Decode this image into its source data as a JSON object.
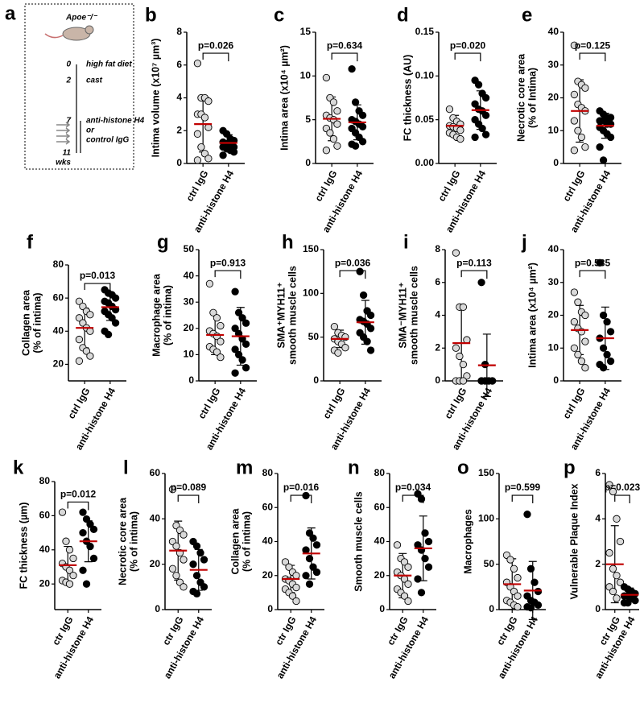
{
  "schematic": {
    "label": "a",
    "mouse": "Apoe⁻/⁻",
    "unit": "wks",
    "timeline": [
      {
        "week": 0,
        "event": [
          "high fat diet"
        ]
      },
      {
        "week": 2,
        "event": [
          "cast"
        ]
      },
      {
        "week": 7,
        "event": [
          "anti-histone H4",
          "or",
          "control IgG"
        ]
      },
      {
        "week": 11,
        "event": []
      }
    ]
  },
  "chart_data": [
    {
      "type": "dot",
      "panel": "b",
      "ylabel": [
        "Intima volume (x10⁷ µm³)"
      ],
      "annotation": "p=0.026",
      "categories": [
        "ctrl IgG",
        "anti-histone H4"
      ],
      "colors": [
        "#d9d9d9",
        "#000000"
      ],
      "mean_color": "#c00000",
      "values": [
        [
          6.1,
          4.0,
          4.0,
          3.8,
          3.0,
          3.0,
          2.8,
          2.2,
          1.8,
          1.0,
          0.6,
          0.3,
          0.2
        ],
        [
          2.0,
          1.8,
          1.5,
          1.4,
          1.3,
          1.2,
          1.2,
          1.0,
          1.0,
          0.9,
          0.8,
          0.7,
          0.5
        ]
      ],
      "mean": [
        2.4,
        1.25
      ],
      "sd": [
        1.7,
        0.5
      ],
      "ylim": [
        0,
        8
      ],
      "yticks": [
        0,
        2,
        4,
        6,
        8
      ]
    },
    {
      "type": "dot",
      "panel": "c",
      "ylabel": [
        "Intima area (x10⁴ µm²)"
      ],
      "annotation": "p=0.634",
      "categories": [
        "ctrl IgG",
        "anti-histone H4"
      ],
      "colors": [
        "#d9d9d9",
        "#000000"
      ],
      "mean_color": "#c00000",
      "values": [
        [
          9.8,
          7.5,
          7.0,
          6.0,
          5.5,
          5.2,
          5.0,
          4.5,
          4.0,
          3.5,
          2.8,
          2.0,
          1.5
        ],
        [
          10.8,
          7.0,
          6.0,
          5.5,
          5.0,
          4.8,
          4.5,
          4.2,
          4.0,
          3.5,
          3.0,
          2.5,
          2.2,
          2.0
        ]
      ],
      "mean": [
        5.1,
        4.7
      ],
      "sd": [
        2.5,
        2.0
      ],
      "ylim": [
        0,
        15
      ],
      "yticks": [
        0,
        5,
        10,
        15
      ]
    },
    {
      "type": "dot",
      "panel": "d",
      "ylabel": [
        "FC thickness  (AU)"
      ],
      "annotation": "p=0.020",
      "categories": [
        "ctrl IgG",
        "anti-histone H4"
      ],
      "colors": [
        "#d9d9d9",
        "#000000"
      ],
      "mean_color": "#c00000",
      "values": [
        [
          0.062,
          0.052,
          0.048,
          0.045,
          0.043,
          0.042,
          0.04,
          0.038,
          0.035,
          0.033,
          0.03,
          0.028
        ],
        [
          0.095,
          0.09,
          0.08,
          0.075,
          0.068,
          0.062,
          0.06,
          0.055,
          0.05,
          0.045,
          0.04,
          0.033,
          0.03
        ]
      ],
      "mean": [
        0.043,
        0.061
      ],
      "sd": [
        0.012,
        0.022
      ],
      "ylim": [
        0,
        0.15
      ],
      "yticks": [
        {
          "value": 0,
          "label": "0.00"
        },
        0.05,
        {
          "value": 0.1,
          "label": "0.10"
        },
        0.15
      ]
    },
    {
      "type": "dot",
      "panel": "e",
      "ylabel": [
        "Necrotic core area",
        "(% of Intima)"
      ],
      "annotation": "p=0.125",
      "categories": [
        "ctrl IgG",
        "anti-histone H4"
      ],
      "colors": [
        "#d9d9d9",
        "#000000"
      ],
      "mean_color": "#c00000",
      "values": [
        [
          36,
          25,
          24,
          23,
          21,
          18,
          17,
          16,
          13,
          10,
          8,
          5,
          4
        ],
        [
          16,
          15,
          14,
          14,
          13,
          13,
          12,
          12,
          11,
          10,
          9,
          8,
          5,
          1
        ]
      ],
      "mean": [
        16,
        11.5
      ],
      "sd": [
        9.5,
        3.8
      ],
      "ylim": [
        0,
        40
      ],
      "yticks": [
        0,
        10,
        20,
        30,
        40
      ]
    },
    {
      "type": "dot",
      "panel": "f",
      "ylabel": [
        "Collagen  area",
        "(% of intima)"
      ],
      "annotation": "p=0.013",
      "categories": [
        "ctrl IgG",
        "anti-histone H4"
      ],
      "colors": [
        "#d9d9d9",
        "#000000"
      ],
      "mean_color": "#c00000",
      "values": [
        [
          58,
          55,
          52,
          50,
          48,
          45,
          42,
          40,
          35,
          30,
          28,
          25,
          22
        ],
        [
          65,
          63,
          62,
          60,
          58,
          57,
          55,
          53,
          52,
          50,
          48,
          45,
          40,
          38
        ]
      ],
      "mean": [
        42,
        54.5
      ],
      "sd": [
        12,
        8
      ],
      "ylim": [
        10,
        80
      ],
      "yticks": [
        20,
        40,
        60,
        80
      ]
    },
    {
      "type": "dot",
      "panel": "g",
      "ylabel": [
        "Macrophage area",
        "(% of intima)"
      ],
      "annotation": "p=0.913",
      "categories": [
        "ctrl IgG",
        "anti-histone H4"
      ],
      "colors": [
        "#d9d9d9",
        "#000000"
      ],
      "mean_color": "#c00000",
      "values": [
        [
          37,
          26,
          24,
          21,
          19,
          18,
          17,
          15,
          13,
          12,
          11,
          9
        ],
        [
          34,
          26,
          24,
          22,
          20,
          18,
          16,
          14,
          12,
          10,
          8,
          5,
          3
        ]
      ],
      "mean": [
        17.5,
        17
      ],
      "sd": [
        7.5,
        11
      ],
      "ylim": [
        0,
        50
      ],
      "yticks": [
        0,
        10,
        20,
        30,
        40,
        50
      ]
    },
    {
      "type": "dot",
      "panel": "h",
      "ylabel": [
        "SMA⁺MYH11⁺",
        "smooth muscle cells"
      ],
      "annotation": "p=0.036",
      "categories": [
        "ctrl IgG",
        "anti-histone H4"
      ],
      "colors": [
        "#d9d9d9",
        "#000000"
      ],
      "mean_color": "#c00000",
      "values": [
        [
          62,
          55,
          52,
          50,
          48,
          45,
          42,
          38,
          35,
          32
        ],
        [
          125,
          98,
          80,
          75,
          70,
          68,
          65,
          60,
          55,
          50,
          45,
          35
        ]
      ],
      "mean": [
        48,
        67
      ],
      "sd": [
        10,
        25
      ],
      "ylim": [
        0,
        150
      ],
      "yticks": [
        0,
        50,
        100,
        150
      ]
    },
    {
      "type": "dot",
      "panel": "i",
      "ylabel": [
        "SMA⁻MYH11⁺",
        "smooth muscle cells"
      ],
      "annotation": "p=0.113",
      "categories": [
        "ctrl IgG",
        "anti-histone H4"
      ],
      "colors": [
        "#d9d9d9",
        "#000000"
      ],
      "mean_color": "#c00000",
      "values": [
        [
          7.8,
          4.5,
          4.5,
          2.5,
          2.0,
          1.5,
          1.0,
          0.3,
          0,
          0,
          0
        ],
        [
          6.0,
          1.0,
          0,
          0,
          0,
          0,
          0,
          0,
          0,
          0
        ]
      ],
      "mean": [
        2.3,
        0.95
      ],
      "sd": [
        2.3,
        1.9
      ],
      "ylim": [
        0,
        8
      ],
      "yticks": [
        0,
        2,
        4,
        6,
        8
      ]
    },
    {
      "type": "dot",
      "panel": "j",
      "ylabel": [
        "Intima area (x10⁴ µm²)"
      ],
      "annotation": "p=0.535",
      "categories": [
        "ctrl IgG",
        "anti-histone H4"
      ],
      "colors": [
        "#d9d9d9",
        "#000000"
      ],
      "mean_color": "#c00000",
      "values": [
        [
          27,
          24,
          21,
          20,
          18,
          16,
          15,
          12,
          10,
          8,
          6,
          4
        ],
        [
          36,
          20,
          18,
          15,
          13,
          10,
          8,
          6,
          5,
          4
        ]
      ],
      "mean": [
        15.5,
        13
      ],
      "sd": [
        7.5,
        9.5
      ],
      "ylim": [
        0,
        40
      ],
      "yticks": [
        0,
        10,
        20,
        30,
        40
      ]
    },
    {
      "type": "dot",
      "panel": "k",
      "ylabel": [
        "FC thickness (µm)"
      ],
      "annotation": "p=0.012",
      "categories": [
        "ctr IgG",
        "anti-histone H4"
      ],
      "colors": [
        "#d9d9d9",
        "#000000"
      ],
      "mean_color": "#c00000",
      "values": [
        [
          62,
          45,
          40,
          35,
          32,
          30,
          28,
          25,
          22,
          21,
          20
        ],
        [
          62,
          58,
          55,
          52,
          50,
          45,
          42,
          35,
          28,
          20
        ]
      ],
      "mean": [
        31,
        45
      ],
      "sd": [
        11,
        12
      ],
      "ylim": [
        5,
        80
      ],
      "yticks": [
        20,
        40,
        60,
        80
      ]
    },
    {
      "type": "dot",
      "panel": "l",
      "ylabel": [
        "Necrotic core area",
        "(% of intima)"
      ],
      "annotation": "p=0.089",
      "categories": [
        "ctr IgG",
        "anti-histone H4"
      ],
      "colors": [
        "#d9d9d9",
        "#000000"
      ],
      "mean_color": "#c00000",
      "values": [
        [
          53,
          37,
          35,
          33,
          30,
          28,
          25,
          22,
          18,
          15,
          12,
          10
        ],
        [
          30,
          28,
          25,
          22,
          20,
          15,
          12,
          10,
          8,
          7
        ]
      ],
      "mean": [
        26,
        17.5
      ],
      "sd": [
        13,
        9
      ],
      "ylim": [
        0,
        60
      ],
      "yticks": [
        0,
        20,
        40,
        60
      ]
    },
    {
      "type": "dot",
      "panel": "m",
      "ylabel": [
        "Collagen area",
        "(% of intima)"
      ],
      "annotation": "p=0.016",
      "categories": [
        "ctr IgG",
        "anti-histone H4"
      ],
      "colors": [
        "#d9d9d9",
        "#000000"
      ],
      "mean_color": "#c00000",
      "values": [
        [
          28,
          25,
          22,
          20,
          18,
          17,
          15,
          13,
          12,
          10,
          8,
          5
        ],
        [
          67,
          45,
          42,
          38,
          35,
          30,
          25,
          22,
          20,
          15
        ]
      ],
      "mean": [
        18,
        33
      ],
      "sd": [
        8,
        15
      ],
      "ylim": [
        0,
        80
      ],
      "yticks": [
        0,
        20,
        40,
        60,
        80
      ]
    },
    {
      "type": "dot",
      "panel": "n",
      "ylabel": [
        "Smooth muscle cells"
      ],
      "annotation": "p=0.034",
      "categories": [
        "ctr IgG",
        "anti-histone H4"
      ],
      "colors": [
        "#d9d9d9",
        "#000000"
      ],
      "mean_color": "#c00000",
      "values": [
        [
          38,
          30,
          28,
          25,
          22,
          20,
          18,
          15,
          12,
          10,
          8,
          5
        ],
        [
          68,
          65,
          45,
          40,
          38,
          35,
          30,
          25,
          18,
          10
        ]
      ],
      "mean": [
        20,
        36
      ],
      "sd": [
        13,
        19
      ],
      "ylim": [
        0,
        80
      ],
      "yticks": [
        0,
        20,
        40,
        60,
        80
      ]
    },
    {
      "type": "dot",
      "panel": "o",
      "ylabel": [
        "Macrophages"
      ],
      "annotation": "p=0.599",
      "categories": [
        "ctr IgG",
        "anti-histone H4"
      ],
      "colors": [
        "#d9d9d9",
        "#000000"
      ],
      "mean_color": "#c00000",
      "values": [
        [
          60,
          55,
          45,
          35,
          30,
          25,
          20,
          15,
          10,
          8,
          5,
          3
        ],
        [
          105,
          45,
          30,
          20,
          15,
          10,
          8,
          5,
          3,
          2
        ]
      ],
      "mean": [
        28,
        21
      ],
      "sd": [
        28,
        32
      ],
      "ylim": [
        0,
        150
      ],
      "yticks": [
        0,
        50,
        100,
        150
      ]
    },
    {
      "type": "dot",
      "panel": "p",
      "ylabel": [
        "Vulnerable Plaque Index"
      ],
      "annotation": "p=0.023",
      "categories": [
        "ctr IgG",
        "anti-histone H4"
      ],
      "colors": [
        "#d9d9d9",
        "#000000"
      ],
      "mean_color": "#c00000",
      "values": [
        [
          5.5,
          5.2,
          4.0,
          3.0,
          2.5,
          1.8,
          1.5,
          1.2,
          1.0,
          0.8,
          0.5
        ],
        [
          1.0,
          0.9,
          0.8,
          0.7,
          0.6,
          0.6,
          0.5,
          0.4,
          0.3,
          0.3
        ]
      ],
      "mean": [
        2.0,
        0.65
      ],
      "sd": [
        1.7,
        0.3
      ],
      "ylim": [
        0,
        6
      ],
      "yticks": [
        0,
        2,
        4,
        6
      ]
    }
  ]
}
